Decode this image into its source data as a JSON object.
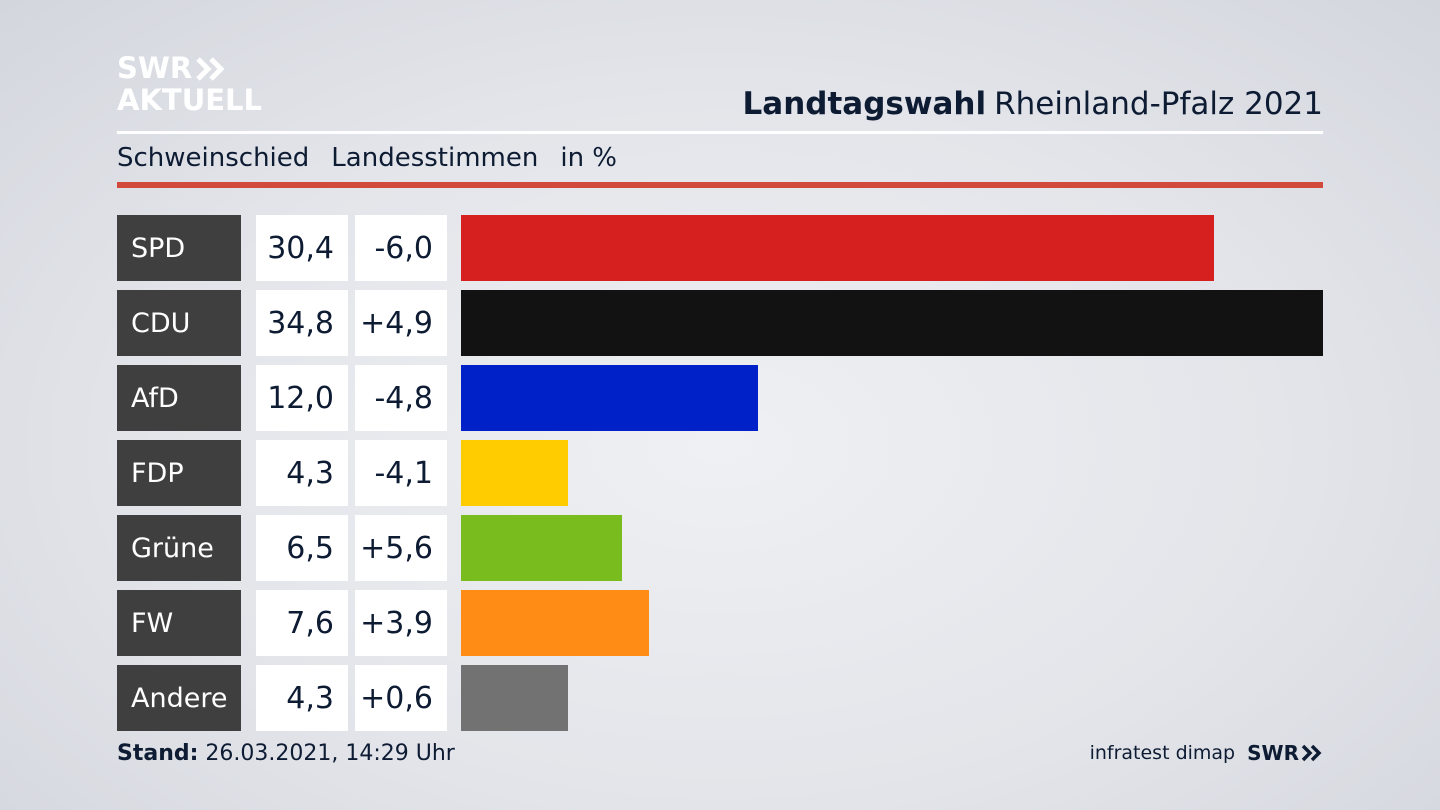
{
  "logo": {
    "line1": "SWR",
    "line2": "AKTUELL"
  },
  "header": {
    "title_bold": "Landtagswahl",
    "title_rest": "Rheinland-Pfalz 2021"
  },
  "subtitle": {
    "place": "Schweinschied",
    "measure": "Landesstimmen",
    "unit": "in %"
  },
  "footer": {
    "stand_label": "Stand:",
    "stand_value": "26.03.2021, 14:29 Uhr",
    "source": "infratest dimap",
    "brand": "SWR"
  },
  "colors": {
    "accent_red": "#d24a3b",
    "party_label_bg": "#3f3f3f",
    "text_dark": "#0d1b33"
  },
  "chart_data": {
    "type": "bar",
    "orientation": "horizontal",
    "categories": [
      "SPD",
      "CDU",
      "AfD",
      "FDP",
      "Grüne",
      "FW",
      "Andere"
    ],
    "values": [
      30.4,
      34.8,
      12.0,
      4.3,
      6.5,
      7.6,
      4.3
    ],
    "value_labels": [
      "30,4",
      "34,8",
      "12,0",
      "4,3",
      "6,5",
      "7,6",
      "4,3"
    ],
    "diff_labels": [
      "-6,0",
      "+4,9",
      "-4,8",
      "-4,1",
      "+5,6",
      "+3,9",
      "+0,6"
    ],
    "diffs": [
      -6.0,
      4.9,
      -4.8,
      -4.1,
      5.6,
      3.9,
      0.6
    ],
    "colors": [
      "#d62020",
      "#121212",
      "#0020c8",
      "#ffcc00",
      "#78bc1e",
      "#ff8c14",
      "#727272"
    ],
    "xlim": [
      0,
      34.8
    ],
    "grid": false
  }
}
